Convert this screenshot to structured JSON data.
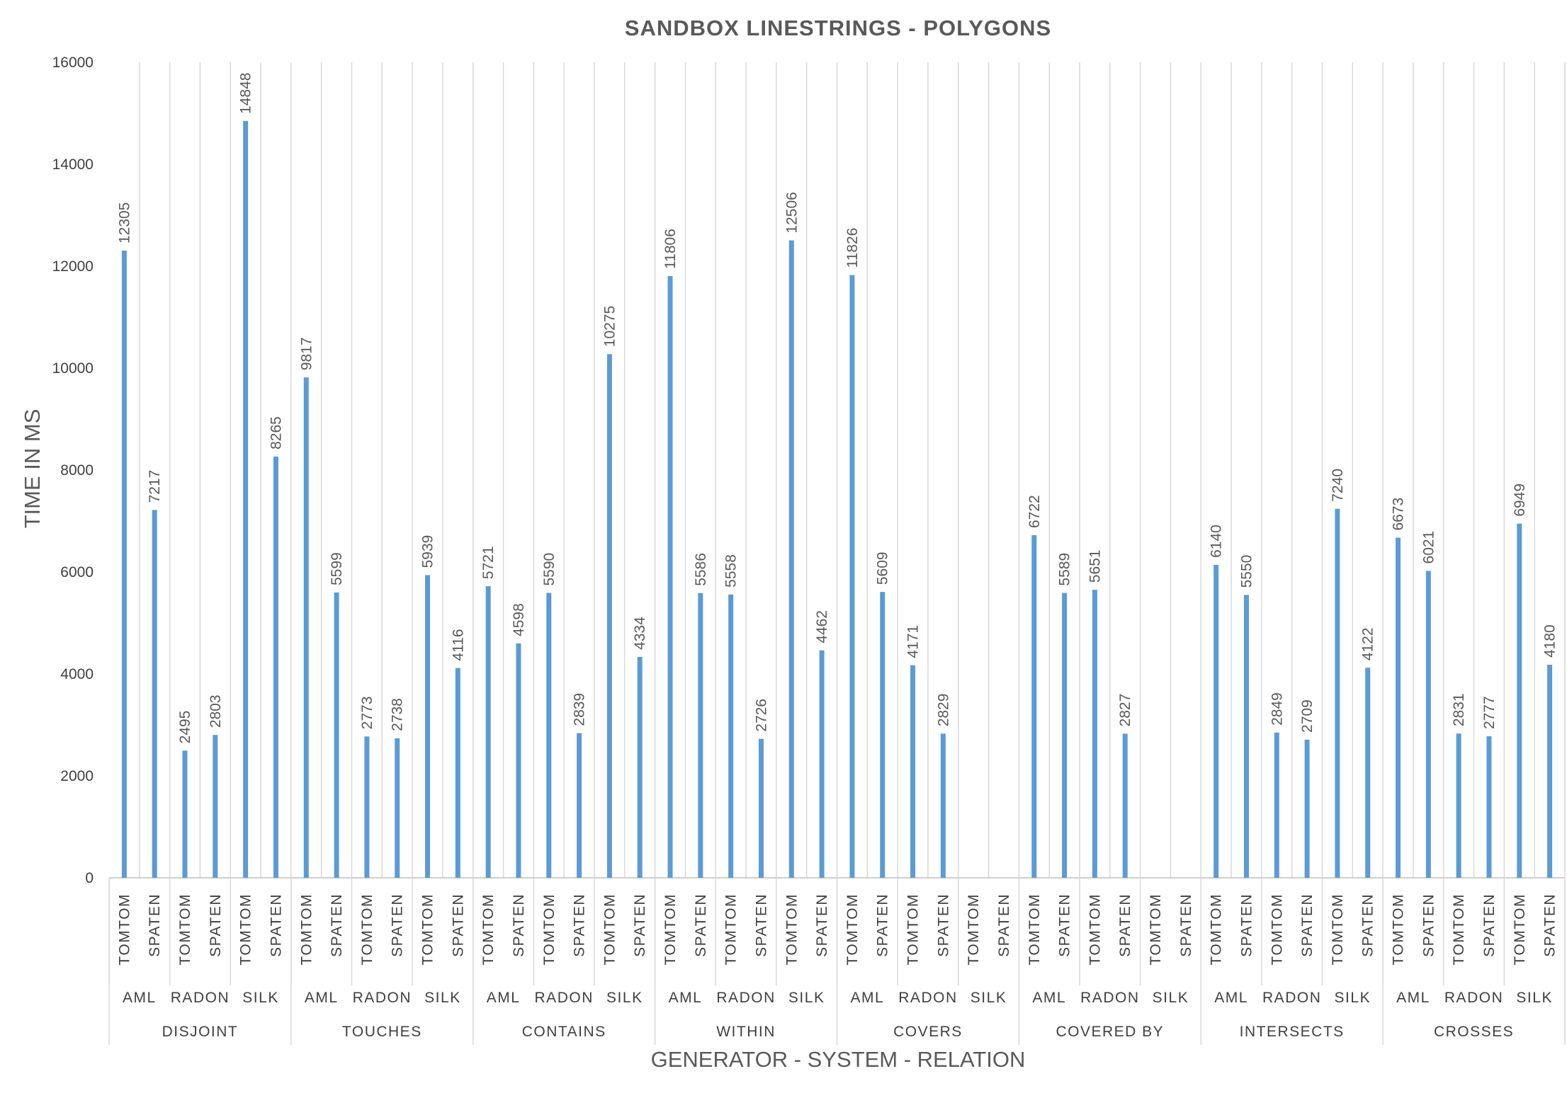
{
  "chart_data": {
    "type": "bar",
    "title": "SANDBOX LINESTRINGS - POLYGONS",
    "xlabel": "GENERATOR - SYSTEM - RELATION",
    "ylabel": "TIME IN MS",
    "ylim": [
      0,
      16000
    ],
    "yticks": [
      "0",
      "2000",
      "4000",
      "6000",
      "8000",
      "10000",
      "12000",
      "14000",
      "16000"
    ],
    "bar_color": "#5b9bd5",
    "grid": true,
    "legend": "none",
    "groups": [
      {
        "relation": "DISJOINT",
        "systems": [
          {
            "system": "AML",
            "bars": [
              {
                "generator": "TOMTOM",
                "value": 12305
              },
              {
                "generator": "SPATEN",
                "value": 7217
              }
            ]
          },
          {
            "system": "RADON",
            "bars": [
              {
                "generator": "TOMTOM",
                "value": 2495
              },
              {
                "generator": "SPATEN",
                "value": 2803
              }
            ]
          },
          {
            "system": "SILK",
            "bars": [
              {
                "generator": "TOMTOM",
                "value": 14848
              },
              {
                "generator": "SPATEN",
                "value": 8265
              }
            ]
          }
        ]
      },
      {
        "relation": "TOUCHES",
        "systems": [
          {
            "system": "AML",
            "bars": [
              {
                "generator": "TOMTOM",
                "value": 9817
              },
              {
                "generator": "SPATEN",
                "value": 5599
              }
            ]
          },
          {
            "system": "RADON",
            "bars": [
              {
                "generator": "TOMTOM",
                "value": 2773
              },
              {
                "generator": "SPATEN",
                "value": 2738
              }
            ]
          },
          {
            "system": "SILK",
            "bars": [
              {
                "generator": "TOMTOM",
                "value": 5939
              },
              {
                "generator": "SPATEN",
                "value": 4116
              }
            ]
          }
        ]
      },
      {
        "relation": "CONTAINS",
        "systems": [
          {
            "system": "AML",
            "bars": [
              {
                "generator": "TOMTOM",
                "value": 5721
              },
              {
                "generator": "SPATEN",
                "value": 4598
              }
            ]
          },
          {
            "system": "RADON",
            "bars": [
              {
                "generator": "TOMTOM",
                "value": 5590
              },
              {
                "generator": "SPATEN",
                "value": 2839
              }
            ]
          },
          {
            "system": "SILK",
            "bars": [
              {
                "generator": "TOMTOM",
                "value": 10275
              },
              {
                "generator": "SPATEN",
                "value": 4334
              }
            ]
          }
        ]
      },
      {
        "relation": "WITHIN",
        "systems": [
          {
            "system": "AML",
            "bars": [
              {
                "generator": "TOMTOM",
                "value": 11806
              },
              {
                "generator": "SPATEN",
                "value": 5586
              }
            ]
          },
          {
            "system": "RADON",
            "bars": [
              {
                "generator": "TOMTOM",
                "value": 5558
              },
              {
                "generator": "SPATEN",
                "value": 2726
              }
            ]
          },
          {
            "system": "SILK",
            "bars": [
              {
                "generator": "TOMTOM",
                "value": 12506
              },
              {
                "generator": "SPATEN",
                "value": 4462
              }
            ]
          }
        ]
      },
      {
        "relation": "COVERS",
        "systems": [
          {
            "system": "AML",
            "bars": [
              {
                "generator": "TOMTOM",
                "value": 11826
              },
              {
                "generator": "SPATEN",
                "value": 5609
              }
            ]
          },
          {
            "system": "RADON",
            "bars": [
              {
                "generator": "TOMTOM",
                "value": 4171
              },
              {
                "generator": "SPATEN",
                "value": 2829
              }
            ]
          },
          {
            "system": "SILK",
            "bars": [
              {
                "generator": "TOMTOM",
                "value": null
              },
              {
                "generator": "SPATEN",
                "value": null
              }
            ]
          }
        ]
      },
      {
        "relation": "COVERED BY",
        "systems": [
          {
            "system": "AML",
            "bars": [
              {
                "generator": "TOMTOM",
                "value": 6722
              },
              {
                "generator": "SPATEN",
                "value": 5589
              }
            ]
          },
          {
            "system": "RADON",
            "bars": [
              {
                "generator": "TOMTOM",
                "value": 5651
              },
              {
                "generator": "SPATEN",
                "value": 2827
              }
            ]
          },
          {
            "system": "SILK",
            "bars": [
              {
                "generator": "TOMTOM",
                "value": null
              },
              {
                "generator": "SPATEN",
                "value": null
              }
            ]
          }
        ]
      },
      {
        "relation": "INTERSECTS",
        "systems": [
          {
            "system": "AML",
            "bars": [
              {
                "generator": "TOMTOM",
                "value": 6140
              },
              {
                "generator": "SPATEN",
                "value": 5550
              }
            ]
          },
          {
            "system": "RADON",
            "bars": [
              {
                "generator": "TOMTOM",
                "value": 2849
              },
              {
                "generator": "SPATEN",
                "value": 2709
              }
            ]
          },
          {
            "system": "SILK",
            "bars": [
              {
                "generator": "TOMTOM",
                "value": 7240
              },
              {
                "generator": "SPATEN",
                "value": 4122
              }
            ]
          }
        ]
      },
      {
        "relation": "CROSSES",
        "systems": [
          {
            "system": "AML",
            "bars": [
              {
                "generator": "TOMTOM",
                "value": 6673
              },
              {
                "generator": "SPATEN",
                "value": 6021
              }
            ]
          },
          {
            "system": "RADON",
            "bars": [
              {
                "generator": "TOMTOM",
                "value": 2831
              },
              {
                "generator": "SPATEN",
                "value": 2777
              }
            ]
          },
          {
            "system": "SILK",
            "bars": [
              {
                "generator": "TOMTOM",
                "value": 6949
              },
              {
                "generator": "SPATEN",
                "value": 4180
              }
            ]
          }
        ]
      }
    ]
  }
}
